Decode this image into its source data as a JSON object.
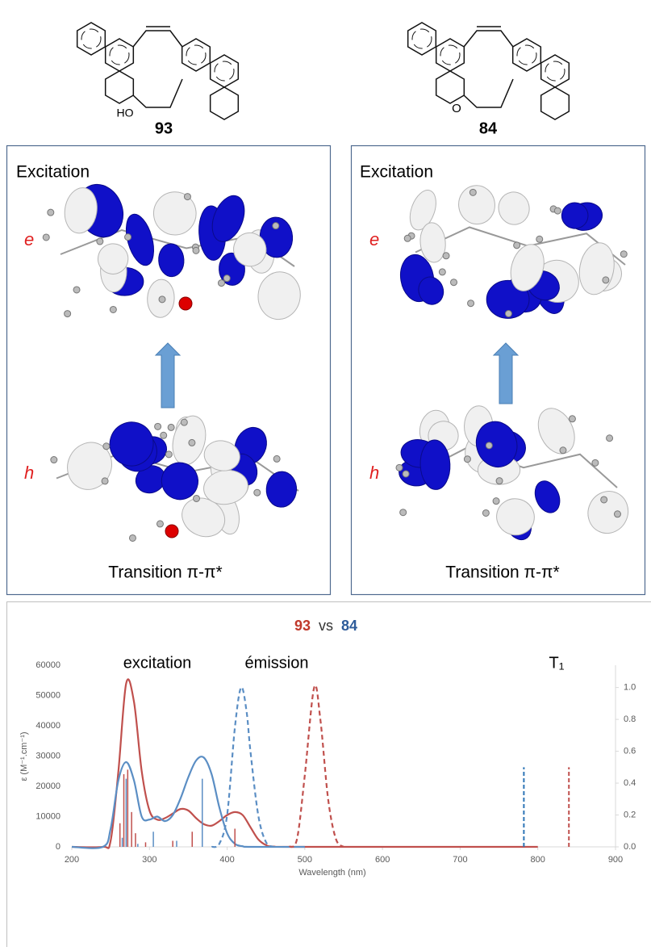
{
  "compounds": [
    {
      "label": "93",
      "substituent": "HO"
    },
    {
      "label": "84",
      "substituent": "O"
    }
  ],
  "panels": [
    {
      "heading": "Excitation",
      "upper": "e",
      "lower": "h",
      "caption": "Transition π-π*"
    },
    {
      "heading": "Excitation",
      "upper": "e",
      "lower": "h",
      "caption": "Transition π-π*"
    }
  ],
  "chart_data": {
    "type": "line",
    "title_parts": [
      "93",
      "vs",
      "84"
    ],
    "title_colors": [
      "#c0392b",
      "#333333",
      "#2e5c9a"
    ],
    "annotations": [
      "excitation",
      "émission",
      "T₁"
    ],
    "xlabel": "Wavelength (nm)",
    "ylabel": "ε (M⁻¹.cm⁻¹)",
    "xlim": [
      200,
      900
    ],
    "xticks": [
      200,
      300,
      400,
      500,
      600,
      700,
      800,
      900
    ],
    "ylim": [
      0,
      60000
    ],
    "yticks": [
      0,
      10000,
      20000,
      30000,
      40000,
      50000,
      60000
    ],
    "y2lim": [
      0,
      1.14
    ],
    "y2ticks": [
      {
        "value": 0,
        "label": "0.0"
      },
      0.2,
      0.4,
      0.6,
      0.8,
      {
        "value": 1,
        "label": "1.0"
      }
    ],
    "grid": false,
    "series": [
      {
        "color": "#c0504d",
        "style": "solid",
        "x": [
          200,
          240,
          250,
          260,
          270,
          280,
          290,
          300,
          310,
          320,
          330,
          340,
          350,
          360,
          370,
          380,
          390,
          400,
          410,
          420,
          430,
          440,
          450,
          460,
          500,
          800
        ],
        "values": [
          0,
          0,
          2000,
          25000,
          54000,
          48000,
          25000,
          12000,
          9000,
          9500,
          11000,
          12500,
          12000,
          9500,
          7500,
          7000,
          8500,
          10500,
          11500,
          10500,
          6500,
          2500,
          600,
          100,
          0,
          0
        ]
      },
      {
        "color": "#5b8ec4",
        "style": "solid",
        "x": [
          200,
          240,
          250,
          260,
          270,
          280,
          290,
          300,
          310,
          320,
          330,
          340,
          350,
          360,
          370,
          380,
          390,
          400,
          410,
          420,
          430,
          500
        ],
        "values": [
          0,
          0,
          6000,
          22000,
          28000,
          22000,
          10000,
          9000,
          10000,
          8500,
          10500,
          16000,
          23000,
          28500,
          29500,
          24000,
          13000,
          4500,
          1000,
          200,
          0,
          0
        ]
      },
      {
        "color": "#c0504d",
        "style": "sticks",
        "x": [
          262,
          267,
          272,
          277,
          282,
          295,
          330,
          355,
          410
        ],
        "values": [
          7800,
          24000,
          25500,
          11500,
          4500,
          1500,
          2000,
          5000,
          6000
        ]
      },
      {
        "color": "#5b8ec4",
        "style": "sticks",
        "x": [
          265,
          270,
          285,
          305,
          335,
          368
        ],
        "values": [
          3000,
          22500,
          1000,
          5000,
          2000,
          22500
        ]
      },
      {
        "color": "#5b8ec4",
        "style": "dashed",
        "axis": "y2",
        "x": [
          380,
          390,
          400,
          410,
          418,
          425,
          430,
          440,
          450,
          460
        ],
        "values": [
          0,
          0.02,
          0.2,
          0.75,
          1.0,
          0.85,
          0.6,
          0.2,
          0.03,
          0
        ]
      },
      {
        "color": "#c0504d",
        "style": "dashed",
        "axis": "y2",
        "x": [
          480,
          490,
          500,
          512,
          520,
          530,
          540,
          550
        ],
        "values": [
          0,
          0.05,
          0.45,
          1.0,
          0.8,
          0.3,
          0.05,
          0
        ]
      },
      {
        "color": "#2e75b6",
        "style": "dashed-sticks",
        "axis": "y2",
        "x": [
          782
        ],
        "values": [
          0.5
        ]
      },
      {
        "color": "#c0504d",
        "style": "dashed-sticks",
        "axis": "y2",
        "x": [
          840
        ],
        "values": [
          0.5
        ]
      }
    ]
  }
}
